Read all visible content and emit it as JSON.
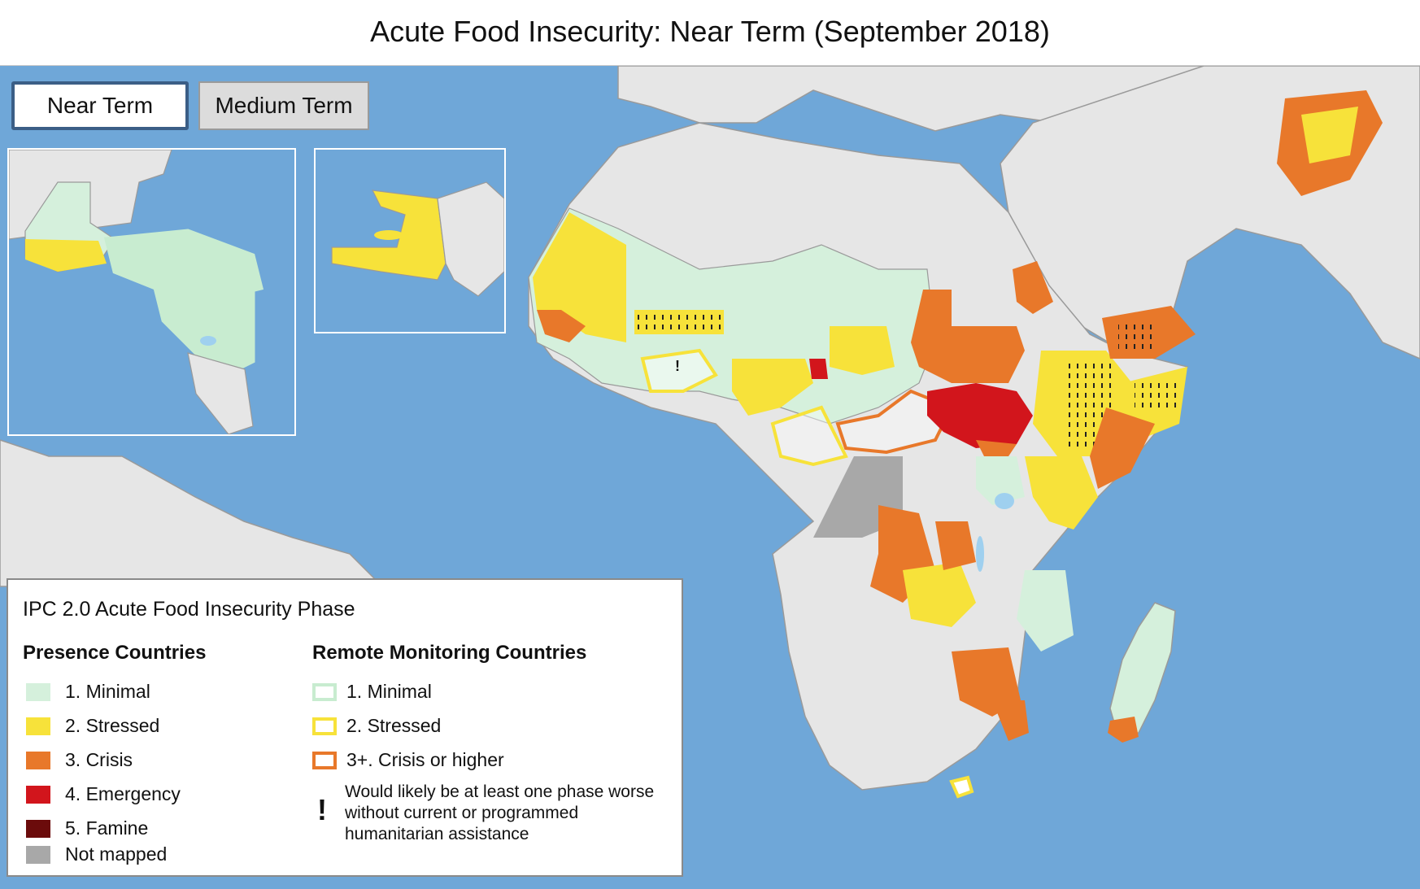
{
  "title": "Acute Food Insecurity: Near Term (September 2018)",
  "tabs": [
    {
      "label": "Near Term",
      "selected": true
    },
    {
      "label": "Medium Term",
      "selected": false
    }
  ],
  "colors": {
    "ocean": "#6fa7d8",
    "land_other": "#e6e6e6",
    "minimal": "#d5f0dc",
    "stressed": "#f7e23a",
    "crisis": "#e8782a",
    "emergency": "#d2151c",
    "famine": "#6b0b0b",
    "not_mapped": "#a8a8a8"
  },
  "legend": {
    "title": "IPC 2.0 Acute Food Insecurity Phase",
    "presence_heading": "Presence Countries",
    "presence_items": [
      {
        "label": "1. Minimal",
        "color": "#d5f0dc"
      },
      {
        "label": "2. Stressed",
        "color": "#f7e23a"
      },
      {
        "label": "3. Crisis",
        "color": "#e8782a"
      },
      {
        "label": "4. Emergency",
        "color": "#d2151c"
      },
      {
        "label": "5. Famine",
        "color": "#6b0b0b"
      },
      {
        "label": "Not mapped",
        "color": "#a8a8a8"
      }
    ],
    "remote_heading": "Remote Monitoring Countries",
    "remote_items": [
      {
        "label": "1. Minimal",
        "color": "#c8ecd0"
      },
      {
        "label": "2. Stressed",
        "color": "#f7e23a"
      },
      {
        "label": "3+. Crisis or higher",
        "color": "#e8782a"
      }
    ],
    "note_mark": "!",
    "note_text": "Would likely be at least one phase worse without current or programmed humanitarian assistance"
  },
  "map_marks": {
    "assistance_mark": "!"
  }
}
